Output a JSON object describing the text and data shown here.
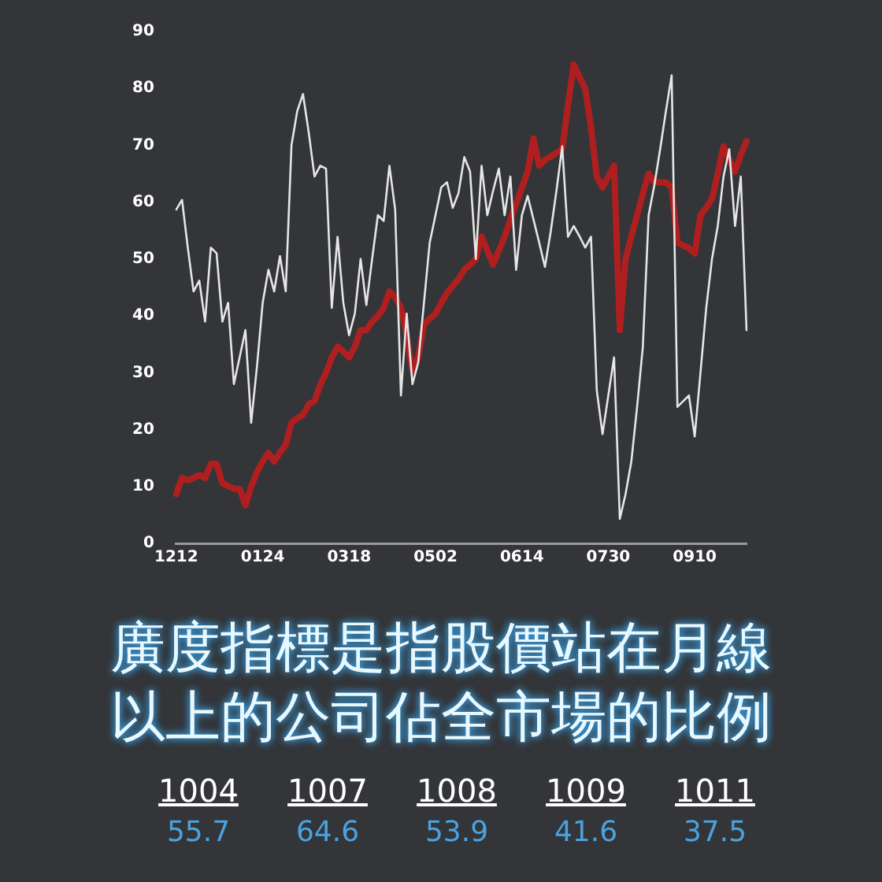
{
  "chart_data": {
    "type": "line",
    "categories": [
      "1212",
      null,
      null,
      null,
      null,
      null,
      null,
      null,
      null,
      null,
      null,
      null,
      null,
      null,
      null,
      "0124",
      null,
      null,
      null,
      null,
      null,
      null,
      null,
      null,
      null,
      null,
      null,
      null,
      null,
      null,
      "0318",
      null,
      null,
      null,
      null,
      null,
      null,
      null,
      null,
      null,
      null,
      null,
      null,
      null,
      null,
      "0502",
      null,
      null,
      null,
      null,
      null,
      null,
      null,
      null,
      null,
      null,
      null,
      null,
      null,
      null,
      "0614",
      null,
      null,
      null,
      null,
      null,
      null,
      null,
      null,
      null,
      null,
      null,
      null,
      null,
      null,
      "0730",
      null,
      null,
      null,
      null,
      null,
      null,
      null,
      null,
      null,
      null,
      null,
      null,
      null,
      null,
      "0910",
      null,
      null,
      null,
      null,
      null,
      null,
      null,
      null,
      null
    ],
    "ylim": [
      0,
      90
    ],
    "yticks": [
      0,
      10,
      20,
      30,
      40,
      50,
      60,
      70,
      80,
      90
    ],
    "grid": false,
    "legend": false,
    "marker": "none",
    "series": [
      {
        "color": "#e6e6e6",
        "values": [
          58.7,
          60.4,
          52,
          44.3,
          46.2,
          39,
          52,
          51,
          39,
          42.3,
          28,
          32.7,
          37.5,
          21.2,
          31,
          42.3,
          48.1,
          44.3,
          50.5,
          44.3,
          70,
          76,
          79,
          72.2,
          64.5,
          66.4,
          65.9,
          41.4,
          53.9,
          42.3,
          36.6,
          40.4,
          50,
          41.9,
          50,
          57.7,
          56.7,
          66.4,
          58.7,
          26,
          40.4,
          28,
          31.8,
          42.3,
          52.9,
          57.7,
          62.6,
          63.5,
          59,
          61.6,
          67.9,
          65.4,
          50,
          66.4,
          57.7,
          62,
          65.9,
          57.7,
          64.5,
          48.1,
          57.7,
          61.1,
          57,
          52.9,
          48.6,
          54.8,
          62,
          69.8,
          53.9,
          55.8,
          54,
          52,
          53.9,
          26.9,
          19.2,
          26,
          32.7,
          4.3,
          8.7,
          14.4,
          24,
          34.6,
          57.7,
          63,
          69.3,
          76,
          82.3,
          24,
          25,
          26,
          18.8,
          30,
          41.4,
          50,
          55.8,
          64.5,
          69.3,
          55.8,
          64.5,
          37.5
        ]
      },
      {
        "color": "#b01f1f",
        "values": [
          8.7,
          11.5,
          11.1,
          11.5,
          12,
          11.5,
          14,
          14,
          10.6,
          10.1,
          9.6,
          9.6,
          6.7,
          10,
          12.5,
          14.4,
          15.9,
          14.4,
          16,
          17.3,
          21.2,
          22,
          22.6,
          24.5,
          25,
          27.9,
          30,
          32.7,
          34.6,
          33.7,
          32.7,
          34.6,
          37.5,
          37.5,
          39,
          40,
          41.4,
          44.3,
          43.3,
          41.4,
          36.6,
          30.3,
          32.7,
          38.5,
          39.5,
          40.4,
          42.3,
          44,
          45.3,
          46.5,
          48.1,
          49,
          50,
          53.9,
          51.5,
          49,
          51.5,
          53.9,
          57,
          59.7,
          62.5,
          65.4,
          71.2,
          66.4,
          67.4,
          68,
          68.7,
          69.3,
          77,
          84.2,
          82,
          79.9,
          73.1,
          64.5,
          62.6,
          64.5,
          66.4,
          37.5,
          50,
          54,
          57.7,
          61.5,
          65,
          63.5,
          63.5,
          63.5,
          62.6,
          52.9,
          52.4,
          51.9,
          51,
          57.7,
          59,
          60.6,
          65,
          69.8,
          67.5,
          65.4,
          68.3,
          70.7
        ]
      }
    ],
    "annotations": [
      "廣度指標是指股價站在月線以上的公司佔全市場的比例",
      "1004",
      "1007",
      "1008",
      "1009",
      "1011",
      "55.7",
      "64.6",
      "53.9",
      "41.6",
      "37.5"
    ]
  }
}
